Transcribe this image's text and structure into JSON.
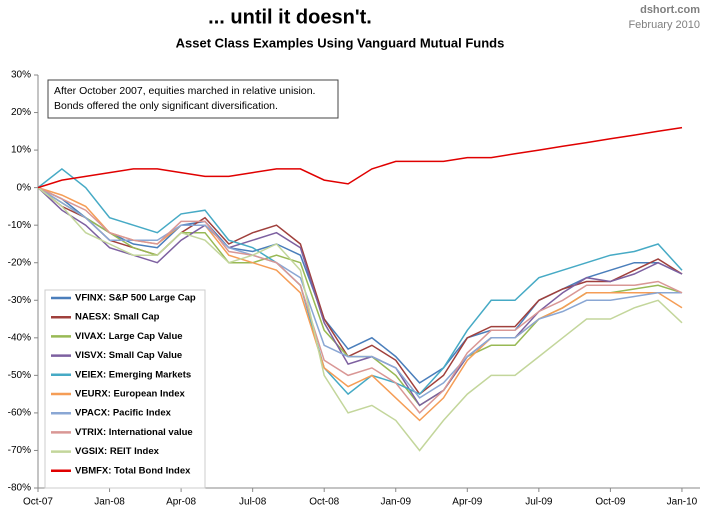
{
  "chart_data": {
    "type": "line",
    "title": "... until it doesn't.",
    "subtitle": "Asset Class Examples Using Vanguard Mutual Funds",
    "source": "dshort.com",
    "date": "February 2010",
    "annotation": [
      "After October 2007, equities marched in relative unision.",
      "Bonds offered the only significant diversification."
    ],
    "categories": [
      "Oct-07",
      null,
      null,
      "Jan-08",
      null,
      null,
      "Apr-08",
      null,
      null,
      "Jul-08",
      null,
      null,
      "Oct-08",
      null,
      null,
      "Jan-09",
      null,
      null,
      "Apr-09",
      null,
      null,
      "Jul-09",
      null,
      null,
      "Oct-09",
      null,
      null,
      "Jan-10"
    ],
    "ylim": [
      -80,
      30
    ],
    "yticks": [
      {
        "value": 30,
        "label": "30%"
      },
      {
        "value": 20,
        "label": "20%"
      },
      {
        "value": 10,
        "label": "10%"
      },
      {
        "value": 0,
        "label": "0%"
      },
      {
        "value": -10,
        "label": "-10%"
      },
      {
        "value": -20,
        "label": "-20%"
      },
      {
        "value": -30,
        "label": "-30%"
      },
      {
        "value": -40,
        "label": "-40%"
      },
      {
        "value": -50,
        "label": "-50%"
      },
      {
        "value": -60,
        "label": "-60%"
      },
      {
        "value": -70,
        "label": "-70%"
      },
      {
        "value": -80,
        "label": "-80%"
      }
    ],
    "grid": false,
    "legend": "lower-left",
    "series": [
      {
        "name": "VFINX: S&P 500 Large Cap",
        "color": "#4a7ebb",
        "values": [
          0,
          -3,
          -8,
          -12,
          -15,
          -16,
          -10,
          -9,
          -16,
          -17,
          -15,
          -18,
          -35,
          -43,
          -40,
          -45,
          -52,
          -48,
          -40,
          -38,
          -38,
          -30,
          -27,
          -24,
          -22,
          -20,
          -20,
          -23
        ]
      },
      {
        "name": "NAESX: Small Cap",
        "color": "#a0403c",
        "values": [
          0,
          -5,
          -8,
          -14,
          -16,
          -18,
          -12,
          -8,
          -15,
          -12,
          -10,
          -15,
          -35,
          -45,
          -42,
          -46,
          -55,
          -50,
          -40,
          -37,
          -37,
          -30,
          -27,
          -25,
          -25,
          -22,
          -19,
          -23
        ]
      },
      {
        "name": "VIVAX: Large Cap Value",
        "color": "#98b954",
        "values": [
          0,
          -4,
          -8,
          -12,
          -16,
          -18,
          -12,
          -12,
          -20,
          -20,
          -18,
          -20,
          -38,
          -45,
          -45,
          -50,
          -58,
          -54,
          -45,
          -42,
          -42,
          -35,
          -32,
          -28,
          -28,
          -27,
          -26,
          -28
        ]
      },
      {
        "name": "VISVX: Small Cap Value",
        "color": "#7d60a0",
        "values": [
          0,
          -6,
          -10,
          -16,
          -18,
          -20,
          -14,
          -10,
          -16,
          -14,
          -12,
          -16,
          -36,
          -47,
          -45,
          -48,
          -58,
          -54,
          -45,
          -40,
          -40,
          -33,
          -28,
          -24,
          -25,
          -23,
          -20,
          -23
        ]
      },
      {
        "name": "VEIEX: Emerging Markets",
        "color": "#46aac5",
        "values": [
          0,
          5,
          0,
          -8,
          -10,
          -12,
          -7,
          -6,
          -14,
          -16,
          -20,
          -26,
          -48,
          -55,
          -50,
          -52,
          -55,
          -48,
          -38,
          -30,
          -30,
          -24,
          -22,
          -20,
          -18,
          -17,
          -15,
          -22
        ]
      },
      {
        "name": "VEURX: European Index",
        "color": "#f59d56",
        "values": [
          0,
          -2,
          -5,
          -12,
          -14,
          -15,
          -10,
          -10,
          -18,
          -20,
          -22,
          -28,
          -48,
          -53,
          -50,
          -56,
          -62,
          -56,
          -46,
          -40,
          -40,
          -35,
          -32,
          -28,
          -28,
          -28,
          -28,
          -32
        ]
      },
      {
        "name": "VPACX: Pacific Index",
        "color": "#8aa7d4",
        "values": [
          0,
          -4,
          -8,
          -14,
          -14,
          -14,
          -10,
          -10,
          -16,
          -18,
          -20,
          -24,
          -42,
          -45,
          -45,
          -48,
          -56,
          -52,
          -45,
          -40,
          -40,
          -35,
          -33,
          -30,
          -30,
          -29,
          -28,
          -28
        ]
      },
      {
        "name": "VTRIX: International value",
        "color": "#d99795",
        "values": [
          0,
          -3,
          -6,
          -12,
          -14,
          -15,
          -9,
          -9,
          -17,
          -18,
          -20,
          -26,
          -46,
          -50,
          -48,
          -52,
          -60,
          -54,
          -44,
          -38,
          -38,
          -33,
          -30,
          -26,
          -26,
          -26,
          -25,
          -28
        ]
      },
      {
        "name": "VGSIX: REIT Index",
        "color": "#c3d69b",
        "values": [
          0,
          -5,
          -12,
          -15,
          -18,
          -18,
          -12,
          -14,
          -20,
          -18,
          -15,
          -22,
          -50,
          -60,
          -58,
          -62,
          -70,
          -62,
          -55,
          -50,
          -50,
          -45,
          -40,
          -35,
          -35,
          -32,
          -30,
          -36
        ]
      },
      {
        "name": "VBMFX: Total Bond Index",
        "color": "#e00000",
        "values": [
          0,
          2,
          3,
          4,
          5,
          5,
          4,
          3,
          3,
          4,
          5,
          5,
          2,
          1,
          5,
          7,
          7,
          7,
          8,
          8,
          9,
          10,
          11,
          12,
          13,
          14,
          15,
          16
        ]
      }
    ]
  }
}
